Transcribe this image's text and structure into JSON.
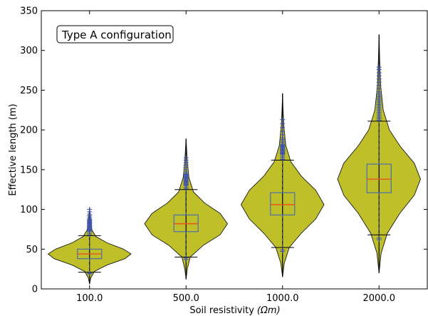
{
  "chart_data": {
    "type": "violin",
    "xlabel": "Soil resistivity",
    "xlabel_unit": "(Ωm)",
    "ylabel": "Effective length (m)",
    "categories": [
      "100.0",
      "500.0",
      "1000.0",
      "2000.0"
    ],
    "ylim": [
      0,
      350
    ],
    "yticks": [
      0,
      50,
      100,
      150,
      200,
      250,
      300,
      350
    ],
    "annotation": "Type A configuration",
    "grid": false,
    "colors": {
      "violin_fill": "#bfbf2a",
      "violin_edge": "#1a1a1a",
      "box_edge": "#4a6fa8",
      "median": "#e8541e",
      "flier": "#3b50b0",
      "whisker": "#3c5a80"
    },
    "violins": [
      {
        "category": "100.0",
        "min": 6,
        "max": 102,
        "q1": 38,
        "median": 44,
        "q3": 50,
        "whisker_low": 21,
        "whisker_high": 67,
        "density": [
          [
            6,
            0.0
          ],
          [
            14,
            0.03
          ],
          [
            22,
            0.12
          ],
          [
            30,
            0.42
          ],
          [
            38,
            0.85
          ],
          [
            44,
            1.0
          ],
          [
            50,
            0.82
          ],
          [
            58,
            0.42
          ],
          [
            66,
            0.15
          ],
          [
            74,
            0.06
          ],
          [
            84,
            0.03
          ],
          [
            94,
            0.015
          ],
          [
            102,
            0.0
          ]
        ],
        "fliers_high": [
          68,
          70,
          72,
          73,
          74,
          75,
          76,
          77,
          78,
          79,
          80,
          81,
          82,
          83,
          84,
          85,
          86,
          87,
          88,
          90,
          92,
          94,
          97,
          100
        ],
        "fliers_low": [
          19,
          20
        ]
      },
      {
        "category": "500.0",
        "min": 12,
        "max": 189,
        "q1": 72,
        "median": 82,
        "q3": 93,
        "whisker_low": 40,
        "whisker_high": 125,
        "density": [
          [
            12,
            0.0
          ],
          [
            25,
            0.03
          ],
          [
            40,
            0.1
          ],
          [
            55,
            0.42
          ],
          [
            68,
            0.82
          ],
          [
            82,
            1.0
          ],
          [
            95,
            0.82
          ],
          [
            108,
            0.45
          ],
          [
            122,
            0.18
          ],
          [
            140,
            0.07
          ],
          [
            160,
            0.03
          ],
          [
            175,
            0.015
          ],
          [
            189,
            0.0
          ]
        ],
        "fliers_high": [
          126,
          128,
          130,
          131,
          132,
          133,
          134,
          135,
          136,
          137,
          138,
          139,
          140,
          141,
          142,
          143,
          144,
          145,
          147,
          150,
          153,
          156,
          159,
          162,
          165
        ],
        "fliers_low": [
          37,
          39
        ]
      },
      {
        "category": "1000.0",
        "min": 15,
        "max": 246,
        "q1": 93,
        "median": 106,
        "q3": 121,
        "whisker_low": 52,
        "whisker_high": 162,
        "density": [
          [
            15,
            0.0
          ],
          [
            32,
            0.04
          ],
          [
            52,
            0.16
          ],
          [
            70,
            0.45
          ],
          [
            88,
            0.8
          ],
          [
            106,
            1.0
          ],
          [
            124,
            0.8
          ],
          [
            142,
            0.45
          ],
          [
            160,
            0.2
          ],
          [
            180,
            0.08
          ],
          [
            205,
            0.03
          ],
          [
            228,
            0.012
          ],
          [
            246,
            0.0
          ]
        ],
        "fliers_high": [
          163,
          165,
          167,
          169,
          170,
          171,
          172,
          173,
          174,
          175,
          176,
          177,
          178,
          179,
          180,
          181,
          182,
          184,
          186,
          188,
          190,
          194,
          198,
          203,
          208,
          213
        ],
        "fliers_low": [
          47,
          49
        ]
      },
      {
        "category": "2000.0",
        "min": 20,
        "max": 320,
        "q1": 121,
        "median": 138,
        "q3": 157,
        "whisker_low": 68,
        "whisker_high": 211,
        "density": [
          [
            20,
            0.0
          ],
          [
            45,
            0.05
          ],
          [
            70,
            0.2
          ],
          [
            95,
            0.5
          ],
          [
            118,
            0.85
          ],
          [
            138,
            1.0
          ],
          [
            158,
            0.85
          ],
          [
            180,
            0.5
          ],
          [
            200,
            0.25
          ],
          [
            225,
            0.1
          ],
          [
            255,
            0.04
          ],
          [
            290,
            0.015
          ],
          [
            320,
            0.0
          ]
        ],
        "fliers_high": [
          212,
          214,
          216,
          218,
          220,
          222,
          224,
          226,
          228,
          230,
          232,
          234,
          236,
          238,
          240,
          242,
          244,
          246,
          248,
          252,
          256,
          260,
          264,
          268,
          272,
          276,
          279
        ],
        "fliers_low": [
          62,
          64
        ]
      }
    ]
  }
}
